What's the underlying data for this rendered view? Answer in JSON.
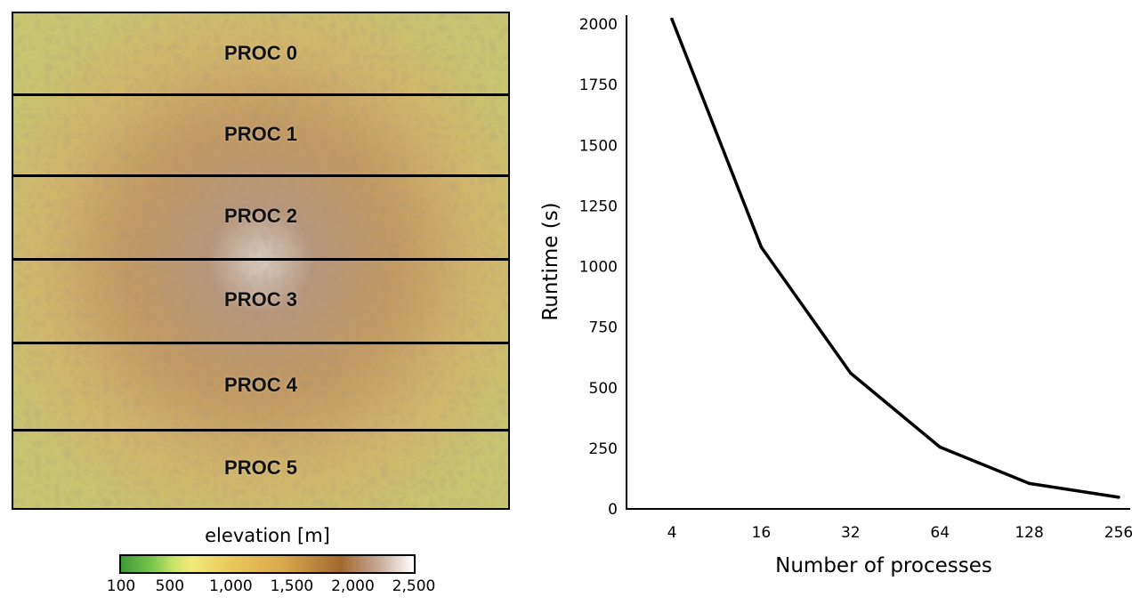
{
  "map": {
    "bands": [
      {
        "label": "PROC 0"
      },
      {
        "label": "PROC 1"
      },
      {
        "label": "PROC 2"
      },
      {
        "label": "PROC 3"
      },
      {
        "label": "PROC 4"
      },
      {
        "label": "PROC 5"
      }
    ],
    "colorbar": {
      "title": "elevation [m]",
      "min": 100,
      "max": 2500,
      "ticks": [
        {
          "value": 100,
          "label": "100"
        },
        {
          "value": 500,
          "label": "500"
        },
        {
          "value": 1000,
          "label": "1,000"
        },
        {
          "value": 1500,
          "label": "1,500"
        },
        {
          "value": 2000,
          "label": "2,000"
        },
        {
          "value": 2500,
          "label": "2,500"
        }
      ]
    }
  },
  "chart_data": {
    "type": "line",
    "x": [
      "4",
      "16",
      "32",
      "64",
      "128",
      "256"
    ],
    "values": [
      2020,
      1080,
      560,
      255,
      105,
      48
    ],
    "xlabel": "Number of processes",
    "ylabel": "Runtime (s)",
    "ylim": [
      0,
      2000
    ],
    "yticks": [
      0,
      250,
      500,
      750,
      1000,
      1250,
      1500,
      1750,
      2000
    ],
    "grid": false,
    "line_color": "#000000"
  }
}
